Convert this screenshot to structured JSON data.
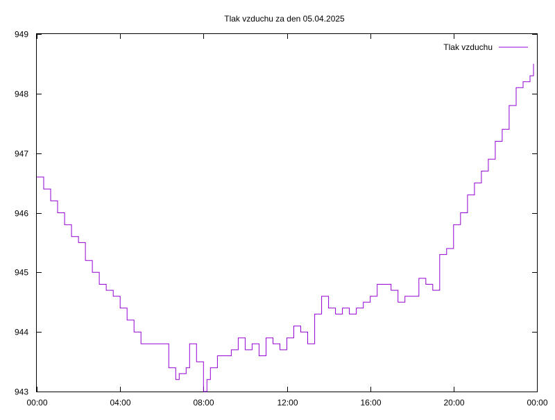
{
  "chart_data": {
    "type": "line",
    "title": "Tlak vzduchu za den 05.04.2025",
    "xlabel": "",
    "ylabel": "",
    "xlim": [
      "00:00",
      "24:00"
    ],
    "ylim": [
      943,
      949
    ],
    "x_ticks": [
      "00:00",
      "04:00",
      "08:00",
      "12:00",
      "16:00",
      "20:00",
      "00:00"
    ],
    "y_ticks": [
      "943",
      "944",
      "945",
      "946",
      "947",
      "948",
      "949"
    ],
    "grid": false,
    "legend": {
      "position": "top-right",
      "entries": [
        "Tlak vzduchu"
      ]
    },
    "series": [
      {
        "name": "Tlak vzduchu",
        "color": "#9400d3",
        "x": [
          "00:00",
          "00:20",
          "00:40",
          "01:00",
          "01:20",
          "01:40",
          "02:00",
          "02:20",
          "02:40",
          "03:00",
          "03:20",
          "03:40",
          "04:00",
          "04:20",
          "04:40",
          "05:00",
          "05:20",
          "05:40",
          "06:00",
          "06:20",
          "06:40",
          "06:50",
          "07:00",
          "07:10",
          "07:20",
          "07:40",
          "08:00",
          "08:10",
          "08:20",
          "08:40",
          "09:00",
          "09:20",
          "09:40",
          "10:00",
          "10:20",
          "10:40",
          "11:00",
          "11:20",
          "11:40",
          "12:00",
          "12:20",
          "12:40",
          "13:00",
          "13:20",
          "13:40",
          "14:00",
          "14:20",
          "14:40",
          "15:00",
          "15:20",
          "15:40",
          "16:00",
          "16:20",
          "16:40",
          "17:00",
          "17:20",
          "17:40",
          "18:00",
          "18:20",
          "18:40",
          "19:00",
          "19:20",
          "19:40",
          "20:00",
          "20:20",
          "20:40",
          "21:00",
          "21:20",
          "21:40",
          "22:00",
          "22:20",
          "22:40",
          "23:00",
          "23:20",
          "23:40",
          "23:50"
        ],
        "values": [
          946.6,
          946.4,
          946.2,
          946.0,
          945.8,
          945.6,
          945.5,
          945.2,
          945.0,
          944.8,
          944.7,
          944.6,
          944.4,
          944.2,
          944.0,
          943.8,
          943.8,
          943.8,
          943.8,
          943.4,
          943.2,
          943.3,
          943.3,
          943.4,
          943.8,
          943.5,
          943.0,
          943.2,
          943.4,
          943.6,
          943.6,
          943.7,
          943.9,
          943.7,
          943.8,
          943.6,
          943.9,
          943.8,
          943.7,
          943.9,
          944.1,
          944.0,
          943.8,
          944.3,
          944.6,
          944.4,
          944.3,
          944.4,
          944.3,
          944.4,
          944.5,
          944.6,
          944.8,
          944.8,
          944.7,
          944.5,
          944.6,
          944.6,
          944.9,
          944.8,
          944.7,
          945.3,
          945.4,
          945.8,
          946.0,
          946.3,
          946.5,
          946.7,
          946.9,
          947.2,
          947.4,
          947.8,
          948.1,
          948.2,
          948.3,
          948.5
        ]
      }
    ]
  }
}
